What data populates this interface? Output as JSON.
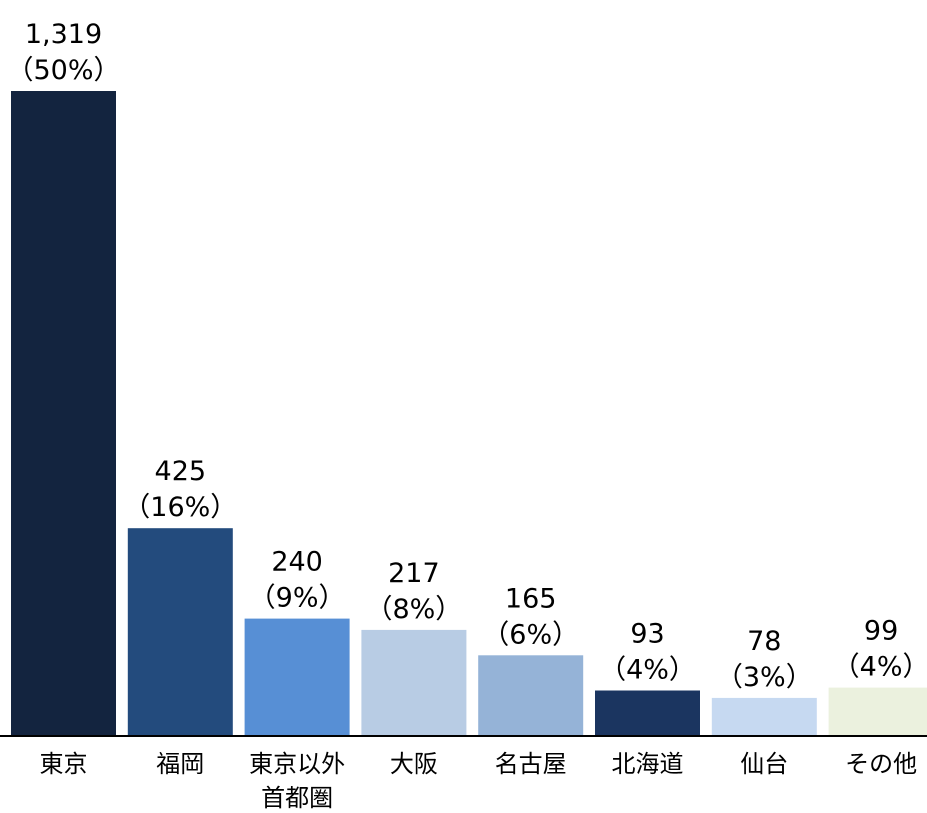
{
  "chart_data": {
    "type": "bar",
    "categories": [
      [
        "東京"
      ],
      [
        "福岡"
      ],
      [
        "東京以外",
        "首都圏"
      ],
      [
        "大阪"
      ],
      [
        "名古屋"
      ],
      [
        "北海道"
      ],
      [
        "仙台"
      ],
      [
        "その他"
      ]
    ],
    "values": [
      1319,
      425,
      240,
      217,
      165,
      93,
      78,
      99
    ],
    "value_labels": [
      "1,319",
      "425",
      "240",
      "217",
      "165",
      "93",
      "78",
      "99"
    ],
    "percent_labels": [
      "（50%）",
      "（16%）",
      "（9%）",
      "（8%）",
      "（6%）",
      "（4%）",
      "（3%）",
      "（4%）"
    ],
    "colors": [
      "#13243f",
      "#234b7d",
      "#578fd5",
      "#b8cce4",
      "#95b3d7",
      "#1b3560",
      "#c6d9f1",
      "#ebf1de"
    ],
    "title": "",
    "xlabel": "",
    "ylabel": "",
    "ylim": [
      0,
      1319
    ],
    "grid": false,
    "legend": "none"
  }
}
